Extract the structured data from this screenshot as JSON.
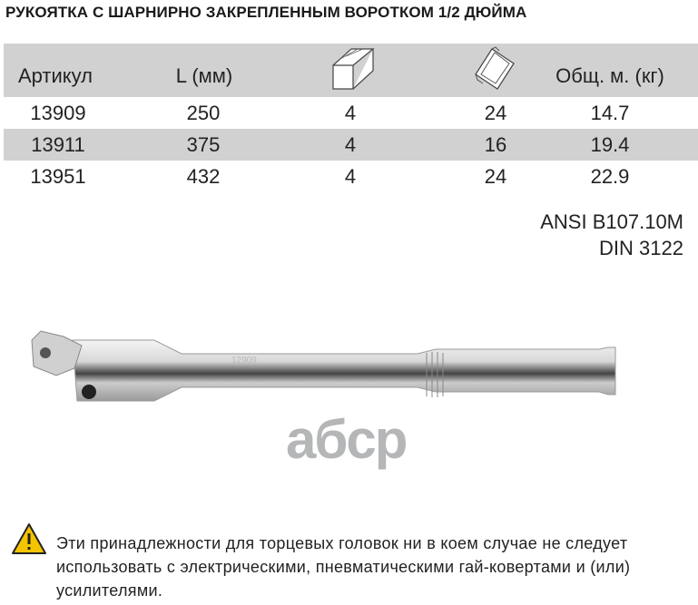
{
  "title": "РУКОЯТКА С ШАРНИРНО ЗАКРЕПЛЕННЫМ ВОРОТКОМ 1/2 ДЮЙМА",
  "table": {
    "headers": [
      "Артикул",
      "L (мм)",
      "square-drive-icon",
      "package-box-icon",
      "Общ. м. (кг)"
    ],
    "rows": [
      [
        "13909",
        "250",
        "4",
        "24",
        "14.7"
      ],
      [
        "13911",
        "375",
        "4",
        "16",
        "19.4"
      ],
      [
        "13951",
        "432",
        "4",
        "24",
        "22.9"
      ]
    ]
  },
  "standards": [
    "ANSI B107.10M",
    "DIN 3122"
  ],
  "image": {
    "engraving": "12909",
    "watermark": "aбcp"
  },
  "warning": {
    "icon": "warning-icon",
    "text": "Эти принадлежности для торцевых головок ни в коем случае не следует использовать с электрическими, пневматическими гай-ковертами и (или) усилителями."
  },
  "colors": {
    "header_bg": "#d1d1d2",
    "watermark": "#b5b6b8",
    "warning": "#f5c400"
  }
}
